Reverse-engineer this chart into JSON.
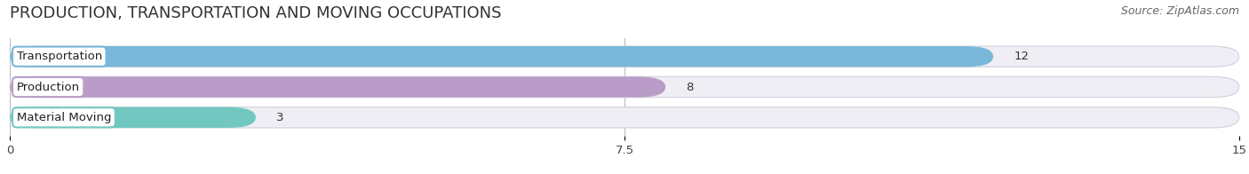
{
  "title": "PRODUCTION, TRANSPORTATION AND MOVING OCCUPATIONS",
  "source": "Source: ZipAtlas.com",
  "categories": [
    "Transportation",
    "Production",
    "Material Moving"
  ],
  "values": [
    12,
    8,
    3
  ],
  "bar_colors": [
    "#7ab8d9",
    "#b99cc8",
    "#72c8c0"
  ],
  "bar_bg_color": "#eeeef4",
  "xlim": [
    0,
    15
  ],
  "xticks": [
    0,
    7.5,
    15
  ],
  "value_labels": [
    "12",
    "8",
    "3"
  ],
  "title_fontsize": 13,
  "label_fontsize": 9.5,
  "tick_fontsize": 9.5,
  "source_fontsize": 9,
  "background_color": "#ffffff"
}
